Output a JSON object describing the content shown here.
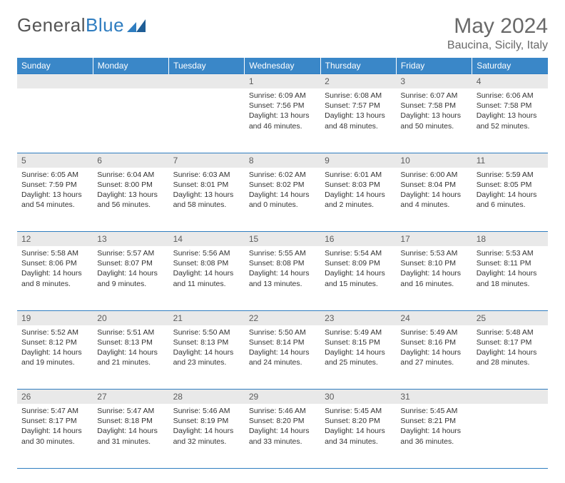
{
  "logo": {
    "part1": "General",
    "part2": "Blue"
  },
  "title": "May 2024",
  "location": "Baucina, Sicily, Italy",
  "colors": {
    "header_bg": "#3a87c8",
    "border": "#2f7dc0",
    "daynum_bg": "#e9e9e9",
    "text": "#333333",
    "title_text": "#696969"
  },
  "dayNames": [
    "Sunday",
    "Monday",
    "Tuesday",
    "Wednesday",
    "Thursday",
    "Friday",
    "Saturday"
  ],
  "weeks": [
    {
      "nums": [
        "",
        "",
        "",
        "1",
        "2",
        "3",
        "4"
      ],
      "cells": [
        {},
        {},
        {},
        {
          "sunrise": "Sunrise: 6:09 AM",
          "sunset": "Sunset: 7:56 PM",
          "daylight": "Daylight: 13 hours and 46 minutes."
        },
        {
          "sunrise": "Sunrise: 6:08 AM",
          "sunset": "Sunset: 7:57 PM",
          "daylight": "Daylight: 13 hours and 48 minutes."
        },
        {
          "sunrise": "Sunrise: 6:07 AM",
          "sunset": "Sunset: 7:58 PM",
          "daylight": "Daylight: 13 hours and 50 minutes."
        },
        {
          "sunrise": "Sunrise: 6:06 AM",
          "sunset": "Sunset: 7:58 PM",
          "daylight": "Daylight: 13 hours and 52 minutes."
        }
      ]
    },
    {
      "nums": [
        "5",
        "6",
        "7",
        "8",
        "9",
        "10",
        "11"
      ],
      "cells": [
        {
          "sunrise": "Sunrise: 6:05 AM",
          "sunset": "Sunset: 7:59 PM",
          "daylight": "Daylight: 13 hours and 54 minutes."
        },
        {
          "sunrise": "Sunrise: 6:04 AM",
          "sunset": "Sunset: 8:00 PM",
          "daylight": "Daylight: 13 hours and 56 minutes."
        },
        {
          "sunrise": "Sunrise: 6:03 AM",
          "sunset": "Sunset: 8:01 PM",
          "daylight": "Daylight: 13 hours and 58 minutes."
        },
        {
          "sunrise": "Sunrise: 6:02 AM",
          "sunset": "Sunset: 8:02 PM",
          "daylight": "Daylight: 14 hours and 0 minutes."
        },
        {
          "sunrise": "Sunrise: 6:01 AM",
          "sunset": "Sunset: 8:03 PM",
          "daylight": "Daylight: 14 hours and 2 minutes."
        },
        {
          "sunrise": "Sunrise: 6:00 AM",
          "sunset": "Sunset: 8:04 PM",
          "daylight": "Daylight: 14 hours and 4 minutes."
        },
        {
          "sunrise": "Sunrise: 5:59 AM",
          "sunset": "Sunset: 8:05 PM",
          "daylight": "Daylight: 14 hours and 6 minutes."
        }
      ]
    },
    {
      "nums": [
        "12",
        "13",
        "14",
        "15",
        "16",
        "17",
        "18"
      ],
      "cells": [
        {
          "sunrise": "Sunrise: 5:58 AM",
          "sunset": "Sunset: 8:06 PM",
          "daylight": "Daylight: 14 hours and 8 minutes."
        },
        {
          "sunrise": "Sunrise: 5:57 AM",
          "sunset": "Sunset: 8:07 PM",
          "daylight": "Daylight: 14 hours and 9 minutes."
        },
        {
          "sunrise": "Sunrise: 5:56 AM",
          "sunset": "Sunset: 8:08 PM",
          "daylight": "Daylight: 14 hours and 11 minutes."
        },
        {
          "sunrise": "Sunrise: 5:55 AM",
          "sunset": "Sunset: 8:08 PM",
          "daylight": "Daylight: 14 hours and 13 minutes."
        },
        {
          "sunrise": "Sunrise: 5:54 AM",
          "sunset": "Sunset: 8:09 PM",
          "daylight": "Daylight: 14 hours and 15 minutes."
        },
        {
          "sunrise": "Sunrise: 5:53 AM",
          "sunset": "Sunset: 8:10 PM",
          "daylight": "Daylight: 14 hours and 16 minutes."
        },
        {
          "sunrise": "Sunrise: 5:53 AM",
          "sunset": "Sunset: 8:11 PM",
          "daylight": "Daylight: 14 hours and 18 minutes."
        }
      ]
    },
    {
      "nums": [
        "19",
        "20",
        "21",
        "22",
        "23",
        "24",
        "25"
      ],
      "cells": [
        {
          "sunrise": "Sunrise: 5:52 AM",
          "sunset": "Sunset: 8:12 PM",
          "daylight": "Daylight: 14 hours and 19 minutes."
        },
        {
          "sunrise": "Sunrise: 5:51 AM",
          "sunset": "Sunset: 8:13 PM",
          "daylight": "Daylight: 14 hours and 21 minutes."
        },
        {
          "sunrise": "Sunrise: 5:50 AM",
          "sunset": "Sunset: 8:13 PM",
          "daylight": "Daylight: 14 hours and 23 minutes."
        },
        {
          "sunrise": "Sunrise: 5:50 AM",
          "sunset": "Sunset: 8:14 PM",
          "daylight": "Daylight: 14 hours and 24 minutes."
        },
        {
          "sunrise": "Sunrise: 5:49 AM",
          "sunset": "Sunset: 8:15 PM",
          "daylight": "Daylight: 14 hours and 25 minutes."
        },
        {
          "sunrise": "Sunrise: 5:49 AM",
          "sunset": "Sunset: 8:16 PM",
          "daylight": "Daylight: 14 hours and 27 minutes."
        },
        {
          "sunrise": "Sunrise: 5:48 AM",
          "sunset": "Sunset: 8:17 PM",
          "daylight": "Daylight: 14 hours and 28 minutes."
        }
      ]
    },
    {
      "nums": [
        "26",
        "27",
        "28",
        "29",
        "30",
        "31",
        ""
      ],
      "cells": [
        {
          "sunrise": "Sunrise: 5:47 AM",
          "sunset": "Sunset: 8:17 PM",
          "daylight": "Daylight: 14 hours and 30 minutes."
        },
        {
          "sunrise": "Sunrise: 5:47 AM",
          "sunset": "Sunset: 8:18 PM",
          "daylight": "Daylight: 14 hours and 31 minutes."
        },
        {
          "sunrise": "Sunrise: 5:46 AM",
          "sunset": "Sunset: 8:19 PM",
          "daylight": "Daylight: 14 hours and 32 minutes."
        },
        {
          "sunrise": "Sunrise: 5:46 AM",
          "sunset": "Sunset: 8:20 PM",
          "daylight": "Daylight: 14 hours and 33 minutes."
        },
        {
          "sunrise": "Sunrise: 5:45 AM",
          "sunset": "Sunset: 8:20 PM",
          "daylight": "Daylight: 14 hours and 34 minutes."
        },
        {
          "sunrise": "Sunrise: 5:45 AM",
          "sunset": "Sunset: 8:21 PM",
          "daylight": "Daylight: 14 hours and 36 minutes."
        },
        {}
      ]
    }
  ]
}
